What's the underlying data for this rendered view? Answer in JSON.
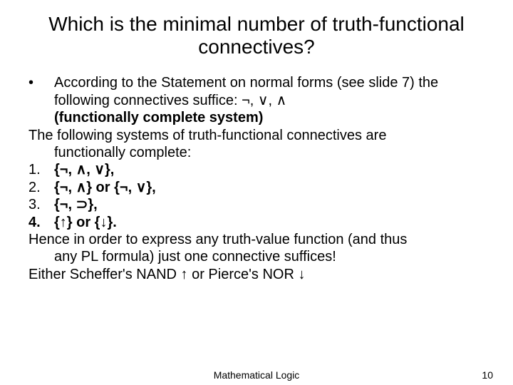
{
  "title": "Which is the minimal number of truth-functional connectives?",
  "body": {
    "bullet_lead": "According to the Statement on normal forms (see slide 7) the following connectives suffice: ¬, ∨, ∧",
    "functionally_complete": "(functionally complete system)",
    "following_systems": "The following systems of truth-functional connectives are",
    "following_systems2": "functionally complete:",
    "items": [
      {
        "n": "1.",
        "text": "{¬, ∧, ∨},"
      },
      {
        "n": "2.",
        "text": "{¬, ∧} or {¬, ∨},"
      },
      {
        "n": "3.",
        "text": "{¬, ⊃},"
      },
      {
        "n": "4.",
        "text": "{↑} or {↓}."
      }
    ],
    "hence1": "Hence in order to express any truth-value function (and thus",
    "hence2": "any PL formula) just one connective suffices!",
    "either": "Either Scheffer's NAND ↑ or Pierce's NOR ↓"
  },
  "footer": {
    "center": "Mathematical Logic",
    "page": "10"
  }
}
